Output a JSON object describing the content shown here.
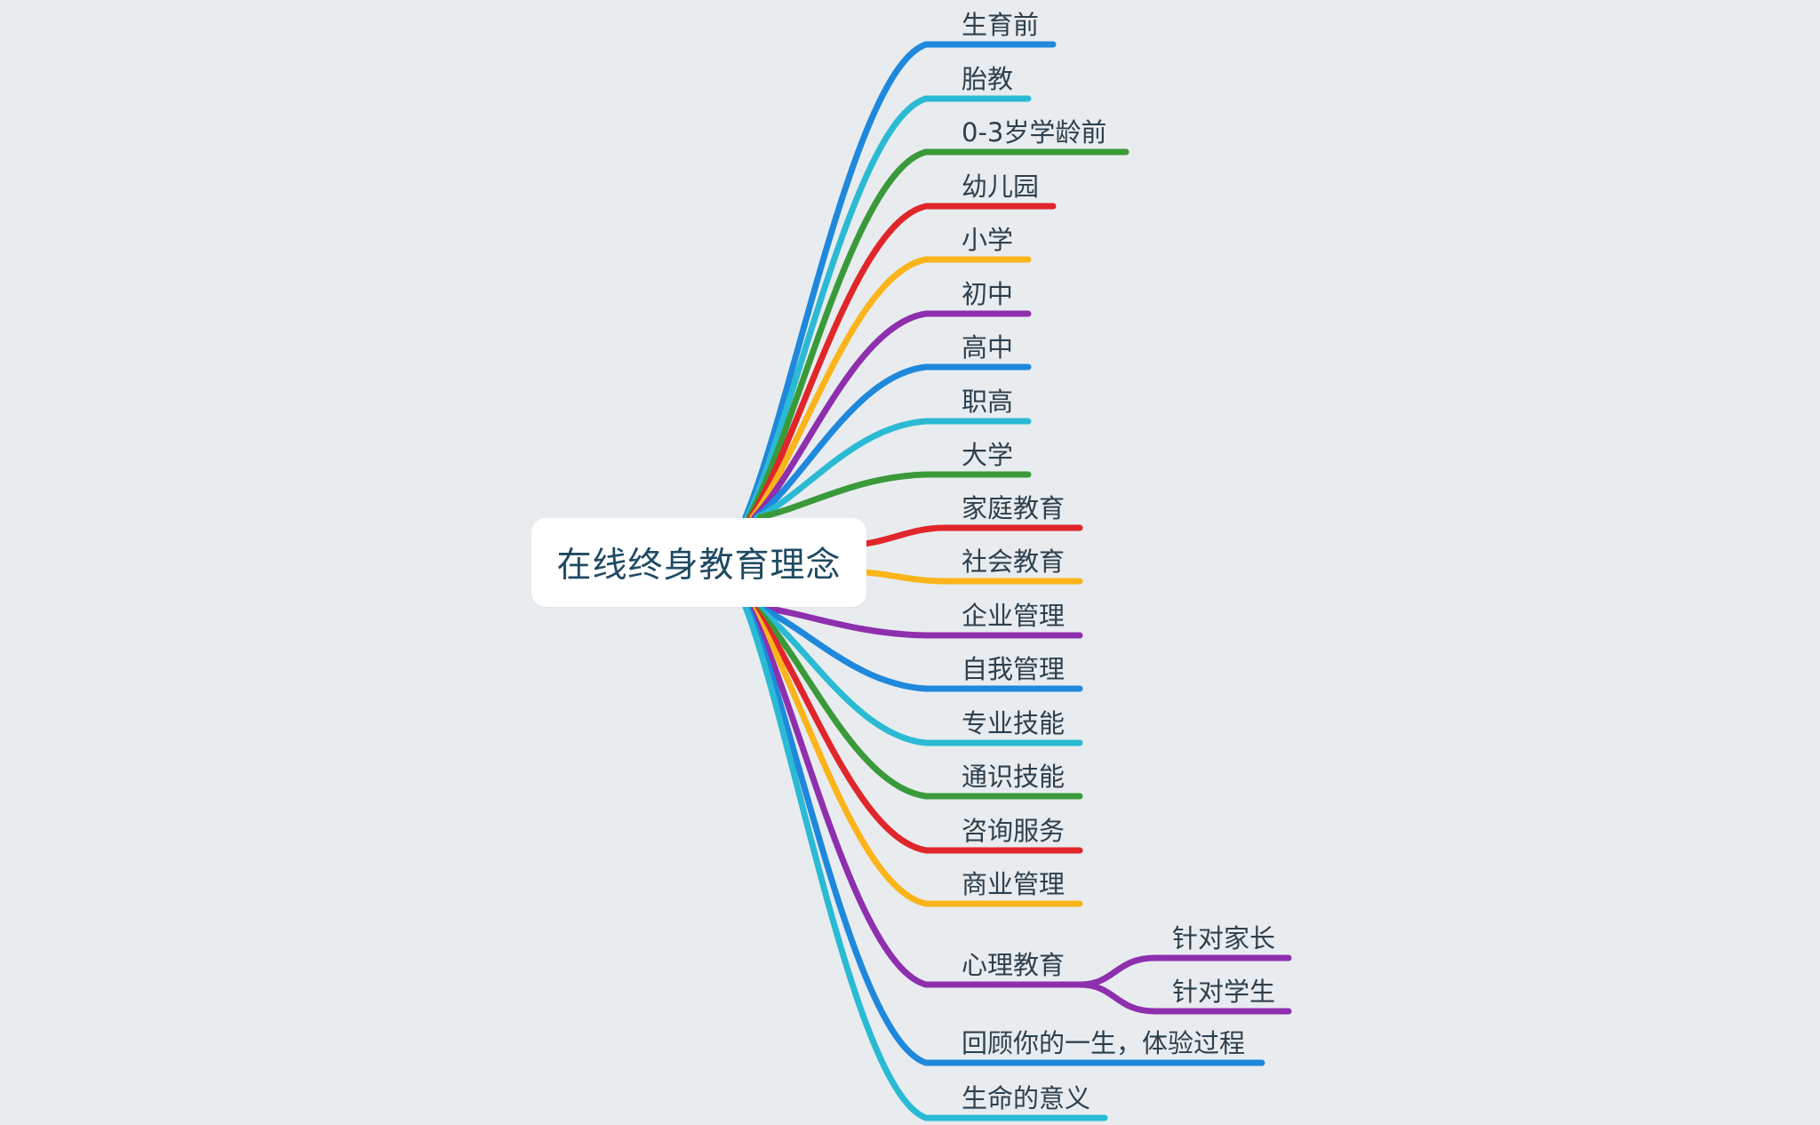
{
  "root": {
    "label": "在线终身教育理念"
  },
  "branches": [
    {
      "label": "生育前",
      "color": "#1e88dc"
    },
    {
      "label": "胎教",
      "color": "#2bbad4"
    },
    {
      "label": "0-3岁学龄前",
      "color": "#3a9a3a"
    },
    {
      "label": "幼儿园",
      "color": "#e0262a"
    },
    {
      "label": "小学",
      "color": "#fbb41a"
    },
    {
      "label": "初中",
      "color": "#8e2fae"
    },
    {
      "label": "高中",
      "color": "#1e88dc"
    },
    {
      "label": "职高",
      "color": "#2bbad4"
    },
    {
      "label": "大学",
      "color": "#3a9a3a"
    },
    {
      "label": "家庭教育",
      "color": "#e0262a"
    },
    {
      "label": "社会教育",
      "color": "#fbb41a"
    },
    {
      "label": "企业管理",
      "color": "#8e2fae"
    },
    {
      "label": "自我管理",
      "color": "#1e88dc"
    },
    {
      "label": "专业技能",
      "color": "#2bbad4"
    },
    {
      "label": "通识技能",
      "color": "#3a9a3a"
    },
    {
      "label": "咨询服务",
      "color": "#e0262a"
    },
    {
      "label": "商业管理",
      "color": "#fbb41a"
    },
    {
      "label": "心理教育",
      "color": "#8e2fae",
      "children": [
        {
          "label": "针对家长"
        },
        {
          "label": "针对学生"
        }
      ]
    },
    {
      "label": "回顾你的一生，体验过程",
      "color": "#1e88dc"
    },
    {
      "label": "生命的意义",
      "color": "#2bbad4"
    }
  ]
}
